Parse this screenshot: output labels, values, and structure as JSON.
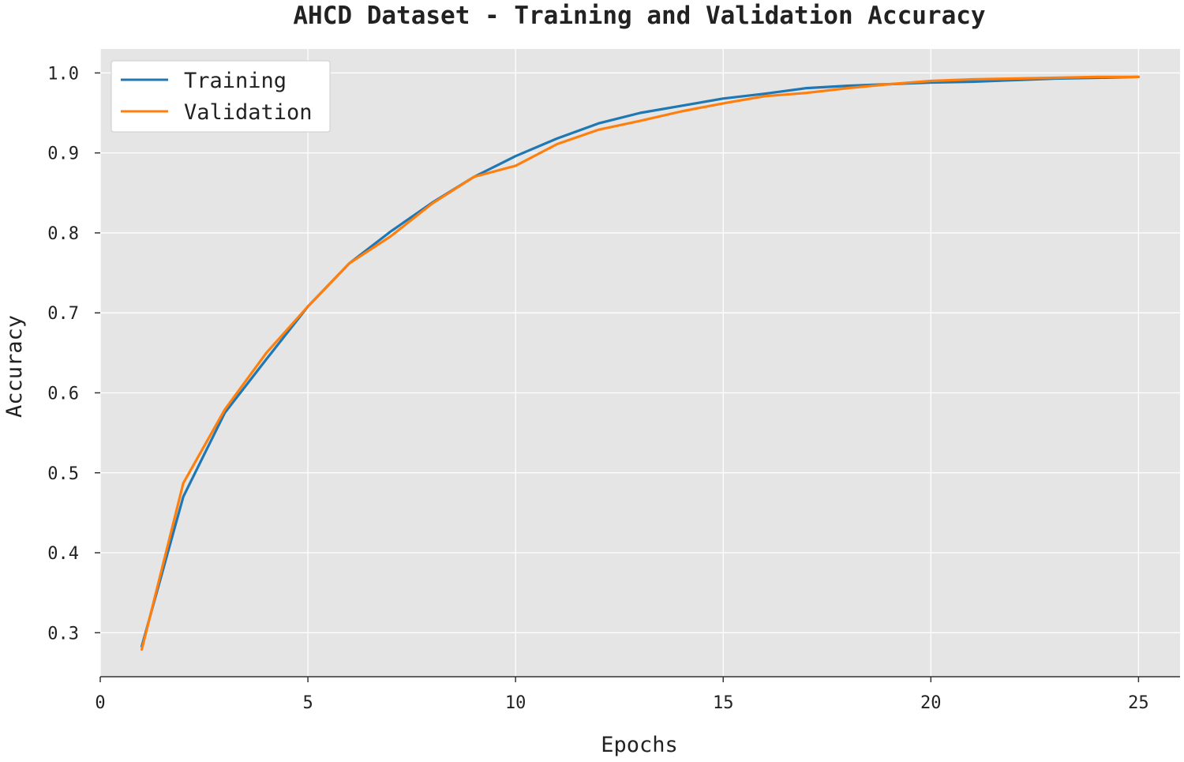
{
  "chart_data": {
    "type": "line",
    "title": "AHCD Dataset - Training and Validation Accuracy",
    "xlabel": "Epochs",
    "ylabel": "Accuracy",
    "xlim": [
      0,
      26
    ],
    "ylim": [
      0.245,
      1.03
    ],
    "xticks": [
      0,
      5,
      10,
      15,
      20,
      25
    ],
    "xtick_labels": [
      "0",
      "5",
      "10",
      "15",
      "20",
      "25"
    ],
    "yticks": [
      0.3,
      0.4,
      0.5,
      0.6,
      0.7,
      0.8,
      0.9,
      1.0
    ],
    "ytick_labels": [
      "0.3",
      "0.4",
      "0.5",
      "0.6",
      "0.7",
      "0.8",
      "0.9",
      "1.0"
    ],
    "grid": true,
    "legend_position": "top-left",
    "background_color": "#e5e5e5",
    "x": [
      1,
      2,
      3,
      4,
      5,
      6,
      7,
      8,
      9,
      10,
      11,
      12,
      13,
      14,
      15,
      16,
      17,
      18,
      19,
      20,
      21,
      22,
      23,
      24,
      25
    ],
    "series": [
      {
        "name": "Training",
        "color": "#1f77b4",
        "values": [
          0.283,
          0.47,
          0.575,
          0.642,
          0.708,
          0.762,
          0.802,
          0.838,
          0.87,
          0.896,
          0.918,
          0.937,
          0.95,
          0.959,
          0.968,
          0.974,
          0.981,
          0.984,
          0.986,
          0.988,
          0.989,
          0.991,
          0.993,
          0.994,
          0.995
        ]
      },
      {
        "name": "Validation",
        "color": "#ff7f0e",
        "values": [
          0.279,
          0.487,
          0.579,
          0.65,
          0.708,
          0.762,
          0.796,
          0.837,
          0.87,
          0.884,
          0.911,
          0.929,
          0.94,
          0.952,
          0.962,
          0.971,
          0.975,
          0.981,
          0.986,
          0.99,
          0.992,
          0.993,
          0.994,
          0.995,
          0.995
        ]
      }
    ]
  }
}
